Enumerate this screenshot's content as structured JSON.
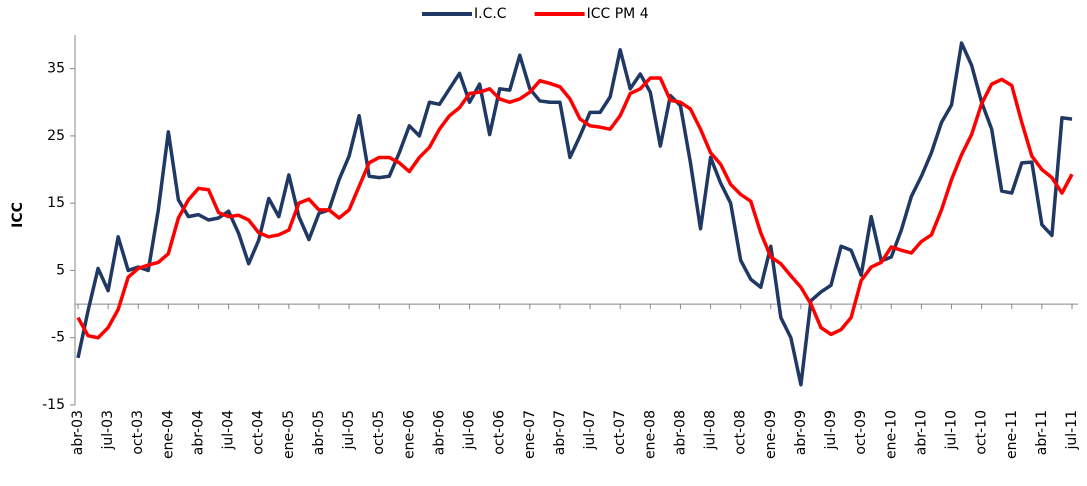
{
  "chart_data": {
    "type": "line",
    "y_label": "ICC",
    "categories": [
      "abr-03",
      null,
      null,
      "jul-03",
      null,
      null,
      "oct-03",
      null,
      null,
      "ene-04",
      null,
      null,
      "abr-04",
      null,
      null,
      "jul-04",
      null,
      null,
      "oct-04",
      null,
      null,
      "ene-05",
      null,
      null,
      "abr-05",
      null,
      null,
      "jul-05",
      null,
      null,
      "oct-05",
      null,
      null,
      "ene-06",
      null,
      null,
      "abr-06",
      null,
      null,
      "jul-06",
      null,
      null,
      "oct-06",
      null,
      null,
      "ene-07",
      null,
      null,
      "abr-07",
      null,
      null,
      "jul-07",
      null,
      null,
      "oct-07",
      null,
      null,
      "ene-08",
      null,
      null,
      "abr-08",
      null,
      null,
      "jul-08",
      null,
      null,
      "oct-08",
      null,
      null,
      "ene-09",
      null,
      null,
      "abr-09",
      null,
      null,
      "jul-09",
      null,
      null,
      "oct-09",
      null,
      null,
      "ene-10",
      null,
      null,
      "abr-10",
      null,
      null,
      "jul-10",
      null,
      null,
      "oct-10",
      null,
      null,
      "ene-11",
      null,
      null,
      "abr-11",
      null,
      null,
      "jul-11"
    ],
    "series": [
      {
        "name": "I.C.C",
        "color": "#1f3864",
        "values": [
          -8,
          -1,
          5.3,
          2,
          10,
          5,
          5.5,
          5,
          14,
          25.6,
          15.5,
          13,
          13.3,
          12.5,
          12.8,
          13.8,
          10.5,
          6,
          9.5,
          15.7,
          13,
          19.2,
          13,
          9.6,
          13.5,
          14,
          18.5,
          22,
          28,
          19,
          18.8,
          19,
          22.5,
          26.5,
          25,
          30,
          29.7,
          32,
          34.3,
          30,
          32.7,
          25.2,
          32,
          31.8,
          37,
          32,
          30.2,
          30,
          30,
          21.8,
          25,
          28.5,
          28.5,
          30.8,
          37.8,
          32,
          34.2,
          31.5,
          23.5,
          31,
          29.5,
          21,
          11.2,
          21.8,
          18,
          15,
          6.5,
          3.7,
          2.5,
          8.6,
          -2,
          -5,
          -12,
          0.5,
          1.8,
          2.8,
          8.6,
          8,
          4.3,
          13,
          6.4,
          7,
          11,
          16,
          19,
          22.5,
          27,
          29.6,
          38.8,
          35.5,
          30,
          26,
          16.8,
          16.5,
          21,
          21.1,
          11.8,
          10.2,
          27.7,
          27.5
        ]
      },
      {
        "name": "ICC PM 4",
        "color": "#ff0000",
        "values": [
          -2,
          -4.7,
          -5,
          -3.5,
          -0.8,
          4,
          5.3,
          5.8,
          6.2,
          7.5,
          12.8,
          15.5,
          17.2,
          17,
          13.6,
          13,
          13.2,
          12.5,
          10.6,
          10,
          10.3,
          11,
          15,
          15.6,
          14,
          14,
          12.8,
          14,
          17.5,
          21,
          21.8,
          21.8,
          21,
          19.7,
          21.8,
          23.3,
          26,
          28,
          29.2,
          31.3,
          31.5,
          32,
          30.5,
          30,
          30.5,
          31.5,
          33.2,
          32.8,
          32.3,
          30.5,
          27.5,
          26.5,
          26.3,
          26,
          28,
          31.3,
          32,
          33.6,
          33.6,
          30.3,
          30,
          29,
          26,
          22.5,
          20.8,
          17.8,
          16.3,
          15.3,
          10.6,
          7,
          6,
          4.2,
          2.5,
          0,
          -3.5,
          -4.5,
          -3.8,
          -2,
          3.5,
          5.5,
          6.2,
          8.5,
          8,
          7.6,
          9.3,
          10.3,
          14,
          18.5,
          22.2,
          25.2,
          29.8,
          32.7,
          33.4,
          32.5,
          27,
          22,
          20,
          18.8,
          16.5,
          19.3
        ]
      }
    ],
    "ylim": [
      -15,
      40
    ],
    "yticks": [
      -15,
      -5,
      5,
      15,
      25,
      35
    ],
    "legend": "top"
  }
}
